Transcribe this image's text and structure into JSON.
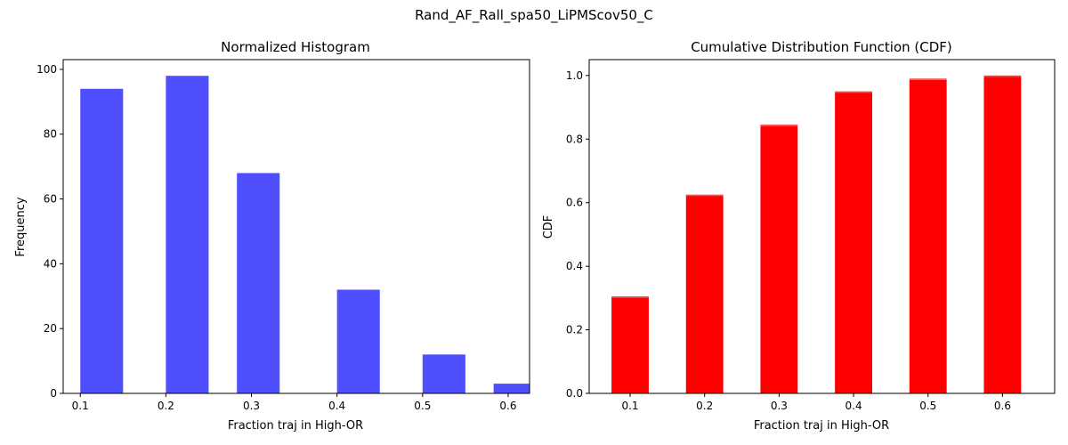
{
  "suptitle": "Rand_AF_Rall_spa50_LiPMScov50_C",
  "chart_data": [
    {
      "type": "bar",
      "title": "Normalized Histogram",
      "xlabel": "Fraction traj in High-OR",
      "ylabel": "Frequency",
      "color": "#4b4bff",
      "xlim": [
        0.08,
        0.625
      ],
      "ylim": [
        0,
        103
      ],
      "xticks": [
        "0.1",
        "0.2",
        "0.3",
        "0.4",
        "0.5",
        "0.6"
      ],
      "yticks": [
        "0",
        "20",
        "40",
        "60",
        "80",
        "100"
      ],
      "bins": [
        {
          "x0": 0.1,
          "x1": 0.15,
          "value": 94
        },
        {
          "x0": 0.2,
          "x1": 0.25,
          "value": 98
        },
        {
          "x0": 0.283,
          "x1": 0.333,
          "value": 68
        },
        {
          "x0": 0.4,
          "x1": 0.45,
          "value": 32
        },
        {
          "x0": 0.5,
          "x1": 0.55,
          "value": 12
        },
        {
          "x0": 0.583,
          "x1": 0.633,
          "value": 3
        }
      ]
    },
    {
      "type": "bar",
      "title": "Cumulative Distribution Function (CDF)",
      "xlabel": "Fraction traj in High-OR",
      "ylabel": "CDF",
      "color": "#ff0000",
      "xlim": [
        0.045,
        0.67
      ],
      "ylim": [
        0,
        1.05
      ],
      "xticks": [
        "0.1",
        "0.2",
        "0.3",
        "0.4",
        "0.5",
        "0.6"
      ],
      "yticks": [
        "0.0",
        "0.2",
        "0.4",
        "0.6",
        "0.8",
        "1.0"
      ],
      "bins": [
        {
          "x": 0.1,
          "width": 0.05,
          "value": 0.305
        },
        {
          "x": 0.2,
          "width": 0.05,
          "value": 0.625
        },
        {
          "x": 0.3,
          "width": 0.05,
          "value": 0.845
        },
        {
          "x": 0.4,
          "width": 0.05,
          "value": 0.95
        },
        {
          "x": 0.5,
          "width": 0.05,
          "value": 0.99
        },
        {
          "x": 0.6,
          "width": 0.05,
          "value": 1.0
        }
      ]
    }
  ]
}
